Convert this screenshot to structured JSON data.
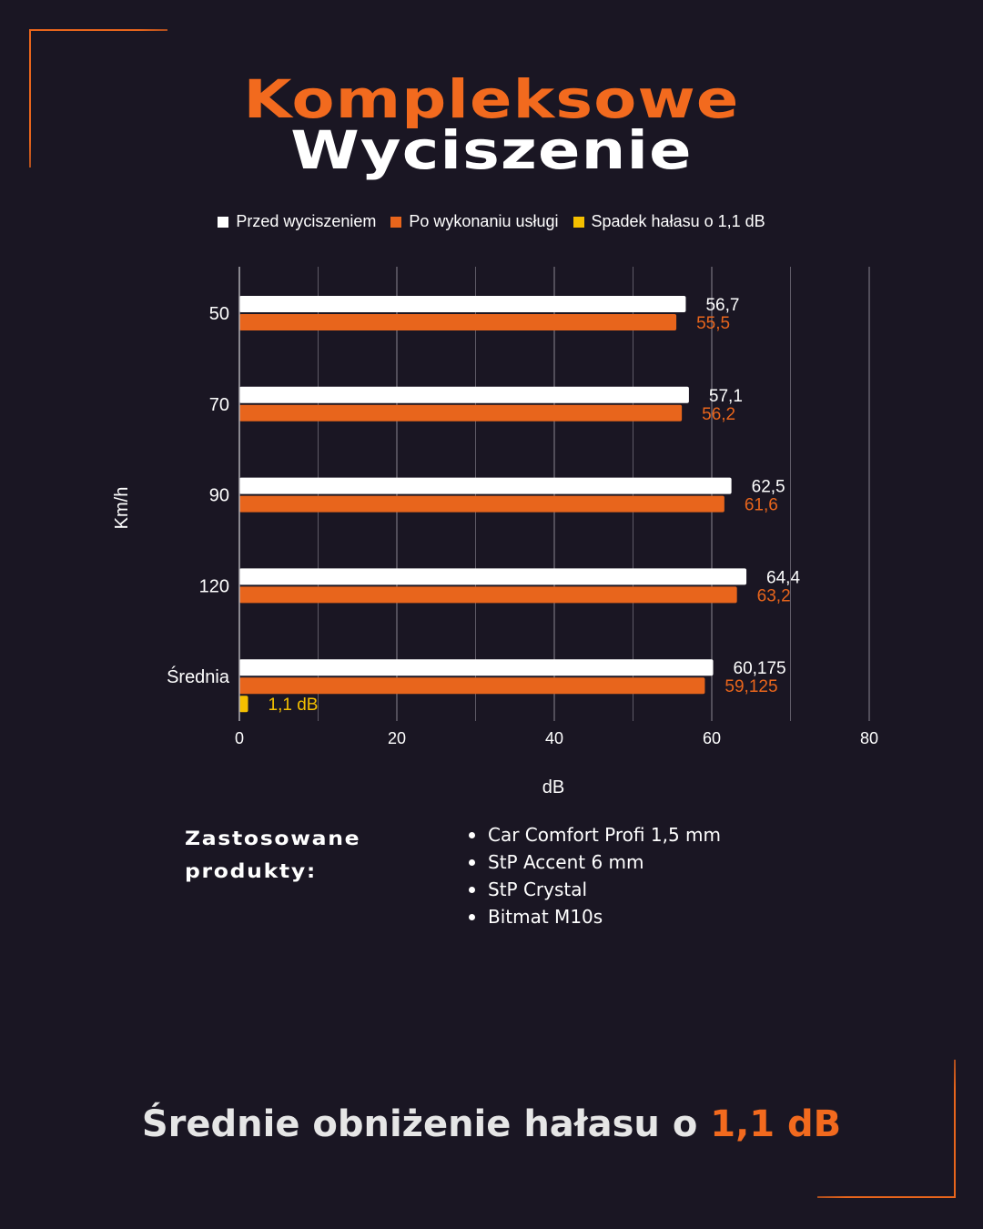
{
  "header": {
    "title_line1": "Kompleksowe",
    "title_line2": "Wyciszenie"
  },
  "colors": {
    "background": "#1a1623",
    "accent": "#e8651c",
    "before": "#ffffff",
    "after": "#e8651c",
    "drop": "#f5c000"
  },
  "chart_data": {
    "type": "bar",
    "orientation": "horizontal",
    "categories": [
      "50",
      "70",
      "90",
      "120",
      "Średnia"
    ],
    "series": [
      {
        "name": "Przed wyciszeniem",
        "values": [
          56.7,
          57.1,
          62.5,
          64.4,
          60.175
        ],
        "labels": [
          "56,7",
          "57,1",
          "62,5",
          "64,4",
          "60,175"
        ]
      },
      {
        "name": "Po wykonaniu usługi",
        "values": [
          55.5,
          56.2,
          61.6,
          63.2,
          59.125
        ],
        "labels": [
          "55,5",
          "56,2",
          "61,6",
          "63,2",
          "59,125"
        ]
      },
      {
        "name": "Spadek hałasu o 1,1 dB",
        "values": [
          null,
          null,
          null,
          null,
          1.1
        ],
        "labels": [
          "",
          "",
          "",
          "",
          "1,1 dB"
        ]
      }
    ],
    "xlabel": "dB",
    "ylabel": "Km/h",
    "xlim": [
      0,
      80
    ],
    "xticks": [
      "0",
      "20",
      "40",
      "60",
      "80"
    ],
    "grid": true,
    "legend_position": "top"
  },
  "products": {
    "title_line1": "Zastosowane",
    "title_line2": "produkty:",
    "items": [
      "Car Comfort Profi 1,5 mm",
      "StP Accent 6 mm",
      "StP Crystal",
      "Bitmat M10s"
    ]
  },
  "footer": {
    "text": "Średnie obniżenie hałasu o ",
    "highlight": "1,1 dB"
  }
}
